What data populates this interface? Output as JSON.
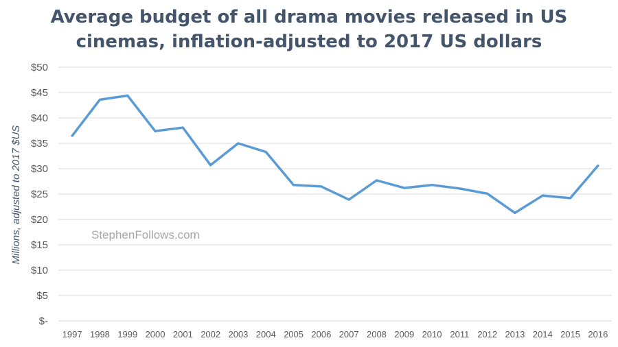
{
  "chart_data": {
    "type": "line",
    "title_lines": [
      "Average budget of all drama movies released in US",
      "cinemas, inflation-adjusted to 2017 US dollars"
    ],
    "xlabel": "",
    "ylabel": "Millions, adjusted to 2017 $US",
    "watermark": "StephenFollows.com",
    "categories": [
      "1997",
      "1998",
      "1999",
      "2000",
      "2001",
      "2002",
      "2003",
      "2004",
      "2005",
      "2006",
      "2007",
      "2008",
      "2009",
      "2010",
      "2011",
      "2012",
      "2013",
      "2014",
      "2015",
      "2016"
    ],
    "series": [
      {
        "name": "Average budget",
        "color": "#5b9bd5",
        "values": [
          36.5,
          43.6,
          44.4,
          37.4,
          38.1,
          30.7,
          35.0,
          33.3,
          26.8,
          26.5,
          23.9,
          27.7,
          26.2,
          26.8,
          26.1,
          25.1,
          21.3,
          24.7,
          24.2,
          30.6
        ]
      }
    ],
    "ylim": [
      0,
      50
    ],
    "y_ticks": [
      0,
      5,
      10,
      15,
      20,
      25,
      30,
      35,
      40,
      45,
      50
    ],
    "y_tick_labels": [
      "$-",
      "$5",
      "$10",
      "$15",
      "$20",
      "$25",
      "$30",
      "$35",
      "$40",
      "$45",
      "$50"
    ],
    "grid": true,
    "legend": "none"
  }
}
